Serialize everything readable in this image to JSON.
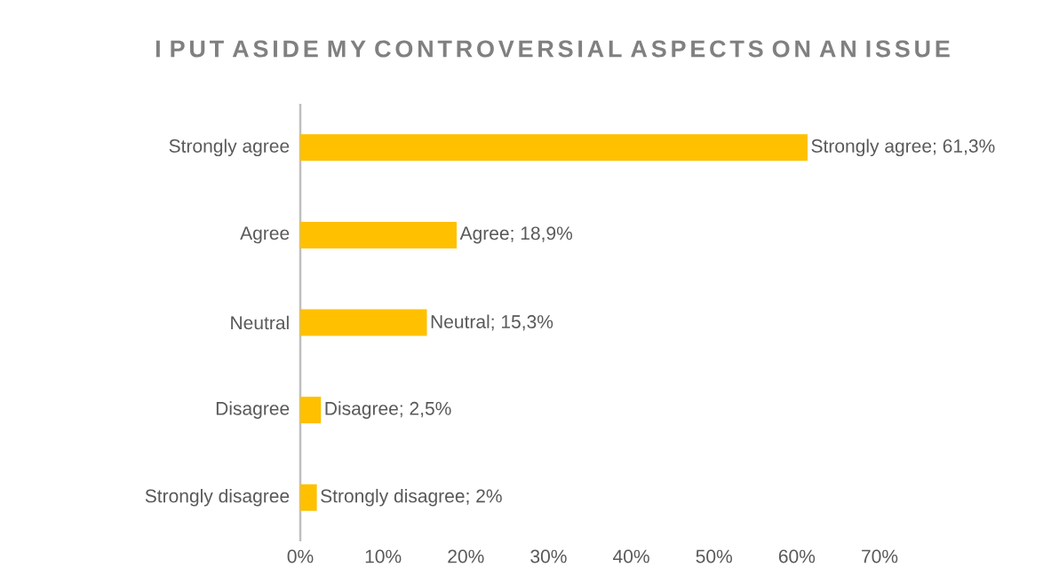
{
  "chart_data": {
    "type": "bar",
    "orientation": "horizontal",
    "title": "I PUT ASIDE MY CONTROVERSIAL ASPECTS ON AN ISSUE",
    "categories": [
      "Strongly agree",
      "Agree",
      "Neutral",
      "Disagree",
      "Strongly disagree"
    ],
    "values": [
      61.3,
      18.9,
      15.3,
      2.5,
      2
    ],
    "value_labels": [
      "Strongly agree; 61,3%",
      "Agree; 18,9%",
      "Neutral; 15,3%",
      "Disagree; 2,5%",
      "Strongly disagree; 2%"
    ],
    "color": "#ffc000",
    "xlim": [
      0,
      70
    ],
    "xticks": [
      {
        "value": 0,
        "label": "0%"
      },
      {
        "value": 10,
        "label": "10%"
      },
      {
        "value": 20,
        "label": "20%"
      },
      {
        "value": 30,
        "label": "30%"
      },
      {
        "value": 40,
        "label": "40%"
      },
      {
        "value": 50,
        "label": "50%"
      },
      {
        "value": 60,
        "label": "60%"
      },
      {
        "value": 70,
        "label": "70%"
      }
    ]
  }
}
